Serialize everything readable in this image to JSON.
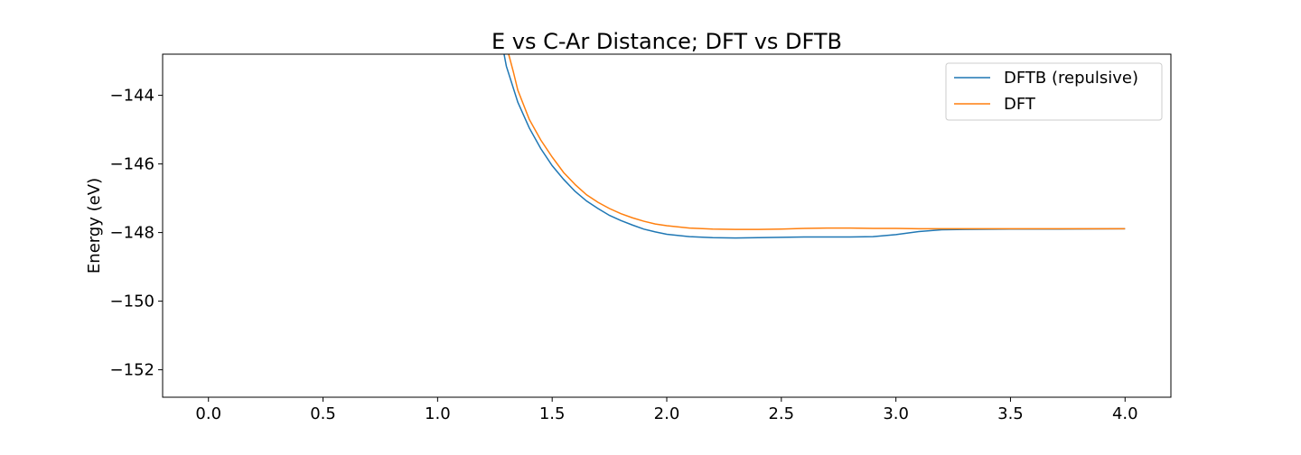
{
  "chart_data": {
    "type": "line",
    "title": "E vs C-Ar Distance; DFT vs DFTB",
    "xlabel": "",
    "ylabel": "Energy (eV)",
    "xlim": [
      -0.2,
      4.2
    ],
    "ylim": [
      -152.8,
      -142.8
    ],
    "xticks": [
      0.0,
      0.5,
      1.0,
      1.5,
      2.0,
      2.5,
      3.0,
      3.5,
      4.0
    ],
    "xtick_labels": [
      "0.0",
      "0.5",
      "1.0",
      "1.5",
      "2.0",
      "2.5",
      "3.0",
      "3.5",
      "4.0"
    ],
    "yticks": [
      -144,
      -146,
      -148,
      -150,
      -152
    ],
    "ytick_labels": [
      "−144",
      "−146",
      "−148",
      "−150",
      "−152"
    ],
    "grid": false,
    "legend_position": "top-right",
    "series": [
      {
        "name": "DFTB (repulsive)",
        "color": "#1f77b4",
        "x": [
          1.29,
          1.3,
          1.35,
          1.4,
          1.45,
          1.5,
          1.55,
          1.6,
          1.65,
          1.7,
          1.75,
          1.8,
          1.85,
          1.9,
          1.95,
          2.0,
          2.1,
          2.2,
          2.3,
          2.4,
          2.5,
          2.6,
          2.7,
          2.8,
          2.9,
          3.0,
          3.1,
          3.2,
          3.3,
          3.5,
          3.7,
          4.0
        ],
        "y": [
          -142.8,
          -143.15,
          -144.2,
          -144.95,
          -145.55,
          -146.05,
          -146.45,
          -146.8,
          -147.08,
          -147.3,
          -147.5,
          -147.65,
          -147.78,
          -147.9,
          -147.98,
          -148.05,
          -148.12,
          -148.15,
          -148.16,
          -148.15,
          -148.14,
          -148.13,
          -148.13,
          -148.13,
          -148.12,
          -148.06,
          -147.97,
          -147.92,
          -147.91,
          -147.9,
          -147.9,
          -147.89
        ]
      },
      {
        "name": "DFT",
        "color": "#ff7f0e",
        "x": [
          1.31,
          1.33,
          1.35,
          1.4,
          1.45,
          1.5,
          1.55,
          1.6,
          1.65,
          1.7,
          1.75,
          1.8,
          1.85,
          1.9,
          1.95,
          2.0,
          2.1,
          2.2,
          2.3,
          2.4,
          2.5,
          2.6,
          2.7,
          2.8,
          2.9,
          3.0,
          3.1,
          3.2,
          3.3,
          3.5,
          3.7,
          4.0
        ],
        "y": [
          -142.8,
          -143.3,
          -143.85,
          -144.7,
          -145.3,
          -145.8,
          -146.25,
          -146.6,
          -146.9,
          -147.12,
          -147.3,
          -147.45,
          -147.57,
          -147.67,
          -147.75,
          -147.8,
          -147.87,
          -147.9,
          -147.91,
          -147.91,
          -147.9,
          -147.88,
          -147.87,
          -147.87,
          -147.88,
          -147.88,
          -147.89,
          -147.89,
          -147.89,
          -147.89,
          -147.89,
          -147.89
        ]
      }
    ]
  }
}
